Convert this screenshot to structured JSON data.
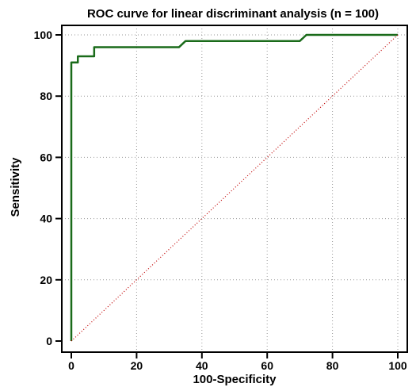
{
  "chart_data": {
    "type": "line",
    "title": "ROC curve for linear discriminant analysis (n = 100)",
    "xlabel": "100-Specificity",
    "ylabel": "Sensitivity",
    "xlim": [
      0,
      100
    ],
    "ylim": [
      0,
      100
    ],
    "xticks": [
      0,
      20,
      40,
      60,
      80,
      100
    ],
    "yticks": [
      0,
      20,
      40,
      60,
      80,
      100
    ],
    "grid": true,
    "series": [
      {
        "color": "#1a6b1a",
        "style": "solid",
        "x": [
          0,
          0,
          0,
          2,
          2,
          4,
          4,
          7,
          7,
          33,
          35,
          70,
          72,
          100
        ],
        "y": [
          0,
          91,
          91,
          91,
          93,
          93,
          93,
          93,
          96,
          96,
          98,
          98,
          100,
          100
        ]
      },
      {
        "color": "#c00000",
        "style": "dotted",
        "x": [
          0,
          100
        ],
        "y": [
          0,
          100
        ]
      }
    ]
  }
}
